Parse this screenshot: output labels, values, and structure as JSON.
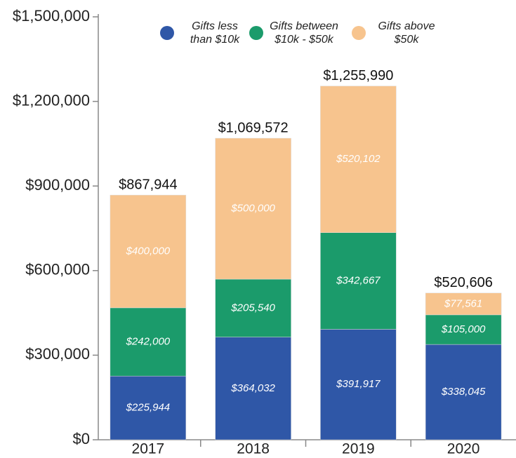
{
  "chart_data": {
    "type": "stacked_bar",
    "categories": [
      "2017",
      "2018",
      "2019",
      "2020"
    ],
    "series": [
      {
        "name": "Gifts less than $10k",
        "color": "#2f57a7",
        "values": [
          225944,
          364032,
          391917,
          338045
        ],
        "value_labels": [
          "$225,944",
          "$364,032",
          "$391,917",
          "$338,045"
        ]
      },
      {
        "name": "Gifts between $10k - $50k",
        "color": "#1b9b6b",
        "values": [
          242000,
          205540,
          342667,
          105000
        ],
        "value_labels": [
          "$242,000",
          "$205,540",
          "$342,667",
          "$105,000"
        ]
      },
      {
        "name": "Gifts above $50k",
        "color": "#f7c48e",
        "values": [
          400000,
          500000,
          520102,
          77561
        ],
        "value_labels": [
          "$400,000",
          "$500,000",
          "$520,102",
          "$77,561"
        ]
      }
    ],
    "totals": [
      867944,
      1069572,
      1255990,
      520606
    ],
    "total_labels": [
      "$867,944",
      "$1,069,572",
      "$1,255,990",
      "$520,606"
    ],
    "ylim": [
      0,
      1500000
    ],
    "yticks": [
      {
        "value": 0,
        "label": "$0"
      },
      {
        "value": 300000,
        "label": "$300,000"
      },
      {
        "value": 600000,
        "label": "$600,000"
      },
      {
        "value": 900000,
        "label": "$900,000"
      },
      {
        "value": 1200000,
        "label": "$1,200,000"
      },
      {
        "value": 1500000,
        "label": "$1,500,000"
      }
    ],
    "legend": "top"
  }
}
